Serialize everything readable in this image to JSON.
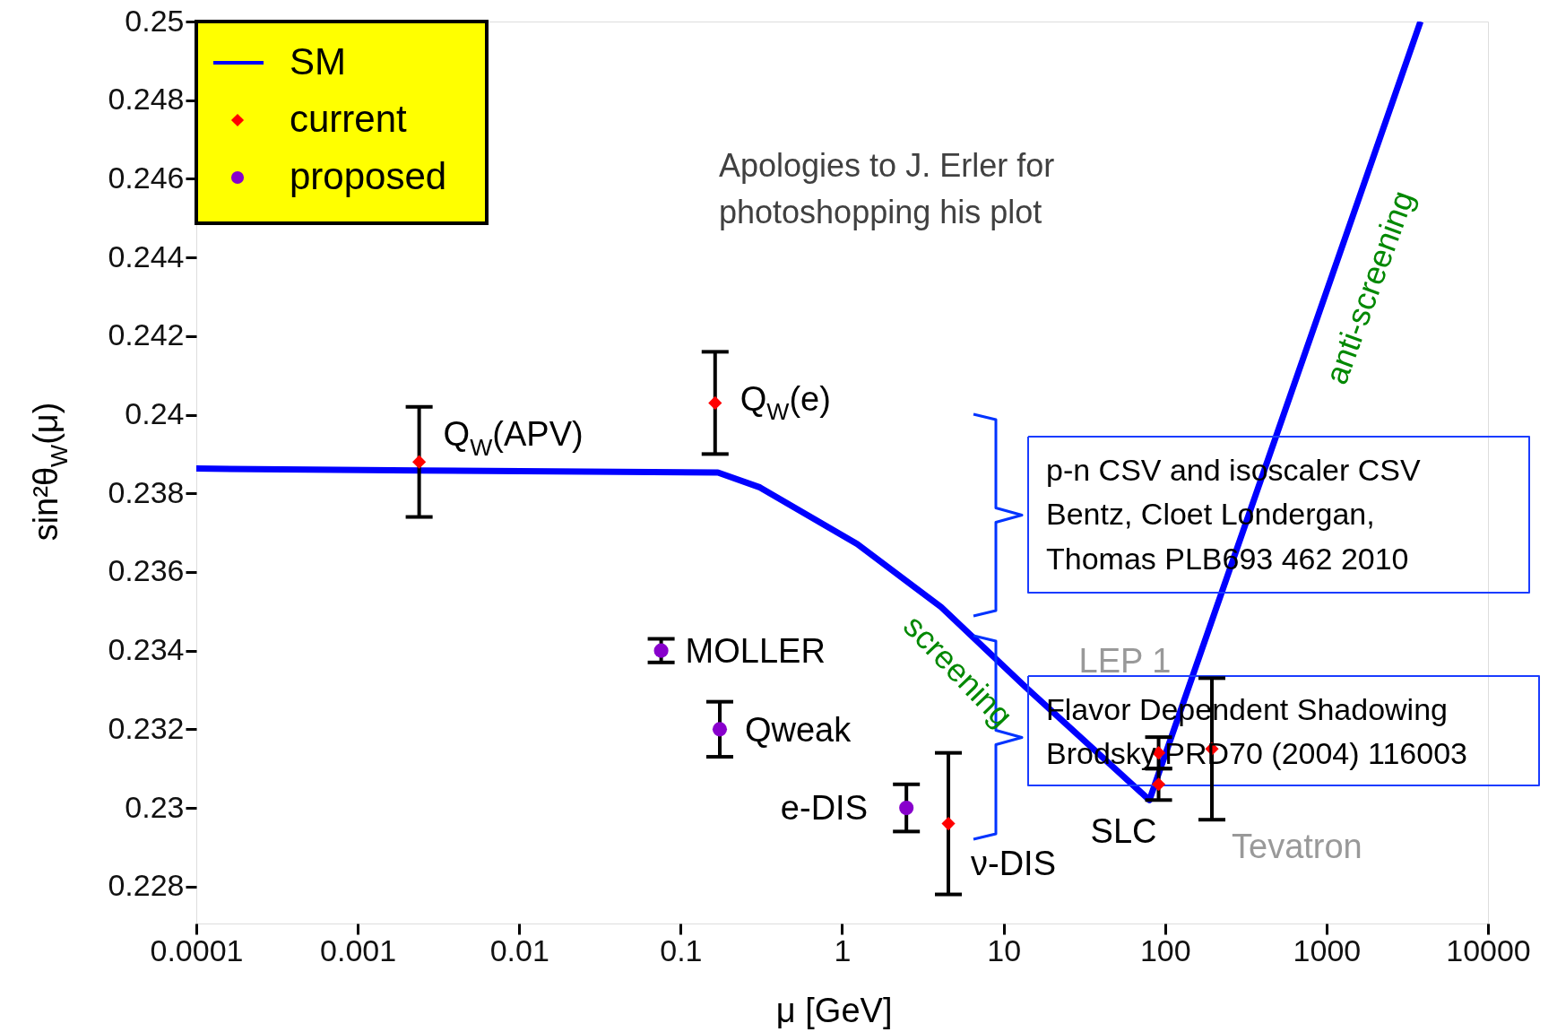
{
  "chart_data": {
    "type": "scatter",
    "xlabel": "μ [GeV]",
    "ylabel": "sin²θ$_{W}$(μ)",
    "log": "x",
    "grid": false,
    "legend": "top left",
    "xlim": [
      0.0001,
      10000
    ],
    "xticks": [
      0.0001,
      0.001,
      0.01,
      0.1,
      1,
      10,
      100,
      1000,
      10000
    ],
    "ylim": [
      0.22706,
      0.25
    ],
    "yticks": [
      0.228,
      0.23,
      0.232,
      0.234,
      0.236,
      0.238,
      0.24,
      0.242,
      0.244,
      0.246,
      0.248,
      0.25
    ],
    "series": [
      {
        "name": "SM",
        "type": "line",
        "color": "#0000ff",
        "line_style": "solid",
        "marker": "none",
        "x": [
          0.0001,
          0.0024,
          0.17,
          0.31,
          1.24,
          4.1,
          14.2,
          80,
          3820
        ],
        "values": [
          0.23863,
          0.23858,
          0.23853,
          0.23815,
          0.23671,
          0.23511,
          0.23301,
          0.2302,
          0.25
        ]
      },
      {
        "name": "current",
        "type": "scatter",
        "color": "#ff0000",
        "marker": "diamond",
        "x": [
          0.0024,
          0.1634,
          4.55,
          91.2,
          91.2,
          195
        ],
        "values": [
          0.2388,
          0.2403,
          0.2296,
          0.2314,
          0.2306,
          0.2315
        ],
        "errors": [
          0.0014,
          0.0013,
          0.0018,
          0.0004,
          0.0004,
          0.0018
        ]
      },
      {
        "name": "proposed",
        "type": "scatter",
        "color": "#8800cc",
        "marker": "circle",
        "x": [
          0.0757,
          0.1746,
          2.5
        ],
        "values": [
          0.234,
          0.232,
          0.23
        ],
        "errors": [
          0.0003,
          0.0007,
          0.0006
        ]
      }
    ],
    "annotations": [
      {
        "text": "Q$_{W}$(APV)",
        "x": 0.0024,
        "y": 0.2388
      },
      {
        "text": "Q$_{W}$(e)",
        "x": 0.1634,
        "y": 0.2403
      },
      {
        "text": "MOLLER",
        "x": 0.0757,
        "y": 0.234
      },
      {
        "text": "Qweak",
        "x": 0.1746,
        "y": 0.232
      },
      {
        "text": "e-DIS",
        "x": 2.5,
        "y": 0.23
      },
      {
        "text": "ν-DIS",
        "x": 4.55,
        "y": 0.2296
      },
      {
        "text": "LEP 1",
        "x": 91.2,
        "y": 0.2314
      },
      {
        "text": "SLC",
        "x": 91.2,
        "y": 0.2306
      },
      {
        "text": "Tevatron",
        "x": 195,
        "y": 0.2315
      },
      "screening",
      "anti-screening",
      "Apologies to J. Erler for\nphotoshopping his plot",
      "p-n CSV and isoscaler CSV\nBentz, Cloet Londergan,\nThomas PLB693 462 2010",
      "Flavor Dependent Shadowing\nBrodsky PRD70 (2004) 116003"
    ]
  }
}
